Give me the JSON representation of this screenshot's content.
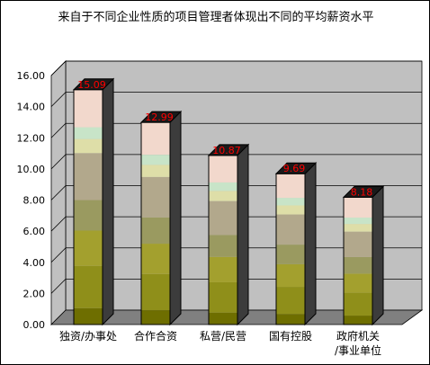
{
  "chart_data": {
    "type": "bar",
    "title": "来自于不同企业性质的项目管理者体现出不同的平均薪资水平",
    "categories": [
      "独资/办事处",
      "合作合资",
      "私营/民营",
      "国有控股",
      "政府机关/事业单位"
    ],
    "values": [
      15.09,
      12.99,
      10.87,
      9.69,
      8.18
    ],
    "data_labels": [
      "15.09",
      "12.99",
      "10.87",
      "9.69",
      "8.18"
    ],
    "y_ticks": [
      "0.00",
      "2.00",
      "4.00",
      "6.00",
      "8.00",
      "10.00",
      "12.00",
      "14.00",
      "16.00"
    ],
    "ylim": [
      0,
      16
    ],
    "xlabel": "",
    "ylabel": "",
    "grid": true,
    "legend": "none",
    "bar_style": "3d-stacked-bands",
    "band_colors": [
      "#6e6e00",
      "#8f8f1a",
      "#a3a02e",
      "#9a9a60",
      "#b2a88c",
      "#dedea8",
      "#c8e4c8",
      "#f2d8cc"
    ],
    "colors": {
      "wall": "#c0c0c0",
      "floor": "#808080",
      "grid": "#000000",
      "side": "#3c3c3c",
      "top": "#1a1a1a",
      "value_label": "#ff0000"
    }
  }
}
